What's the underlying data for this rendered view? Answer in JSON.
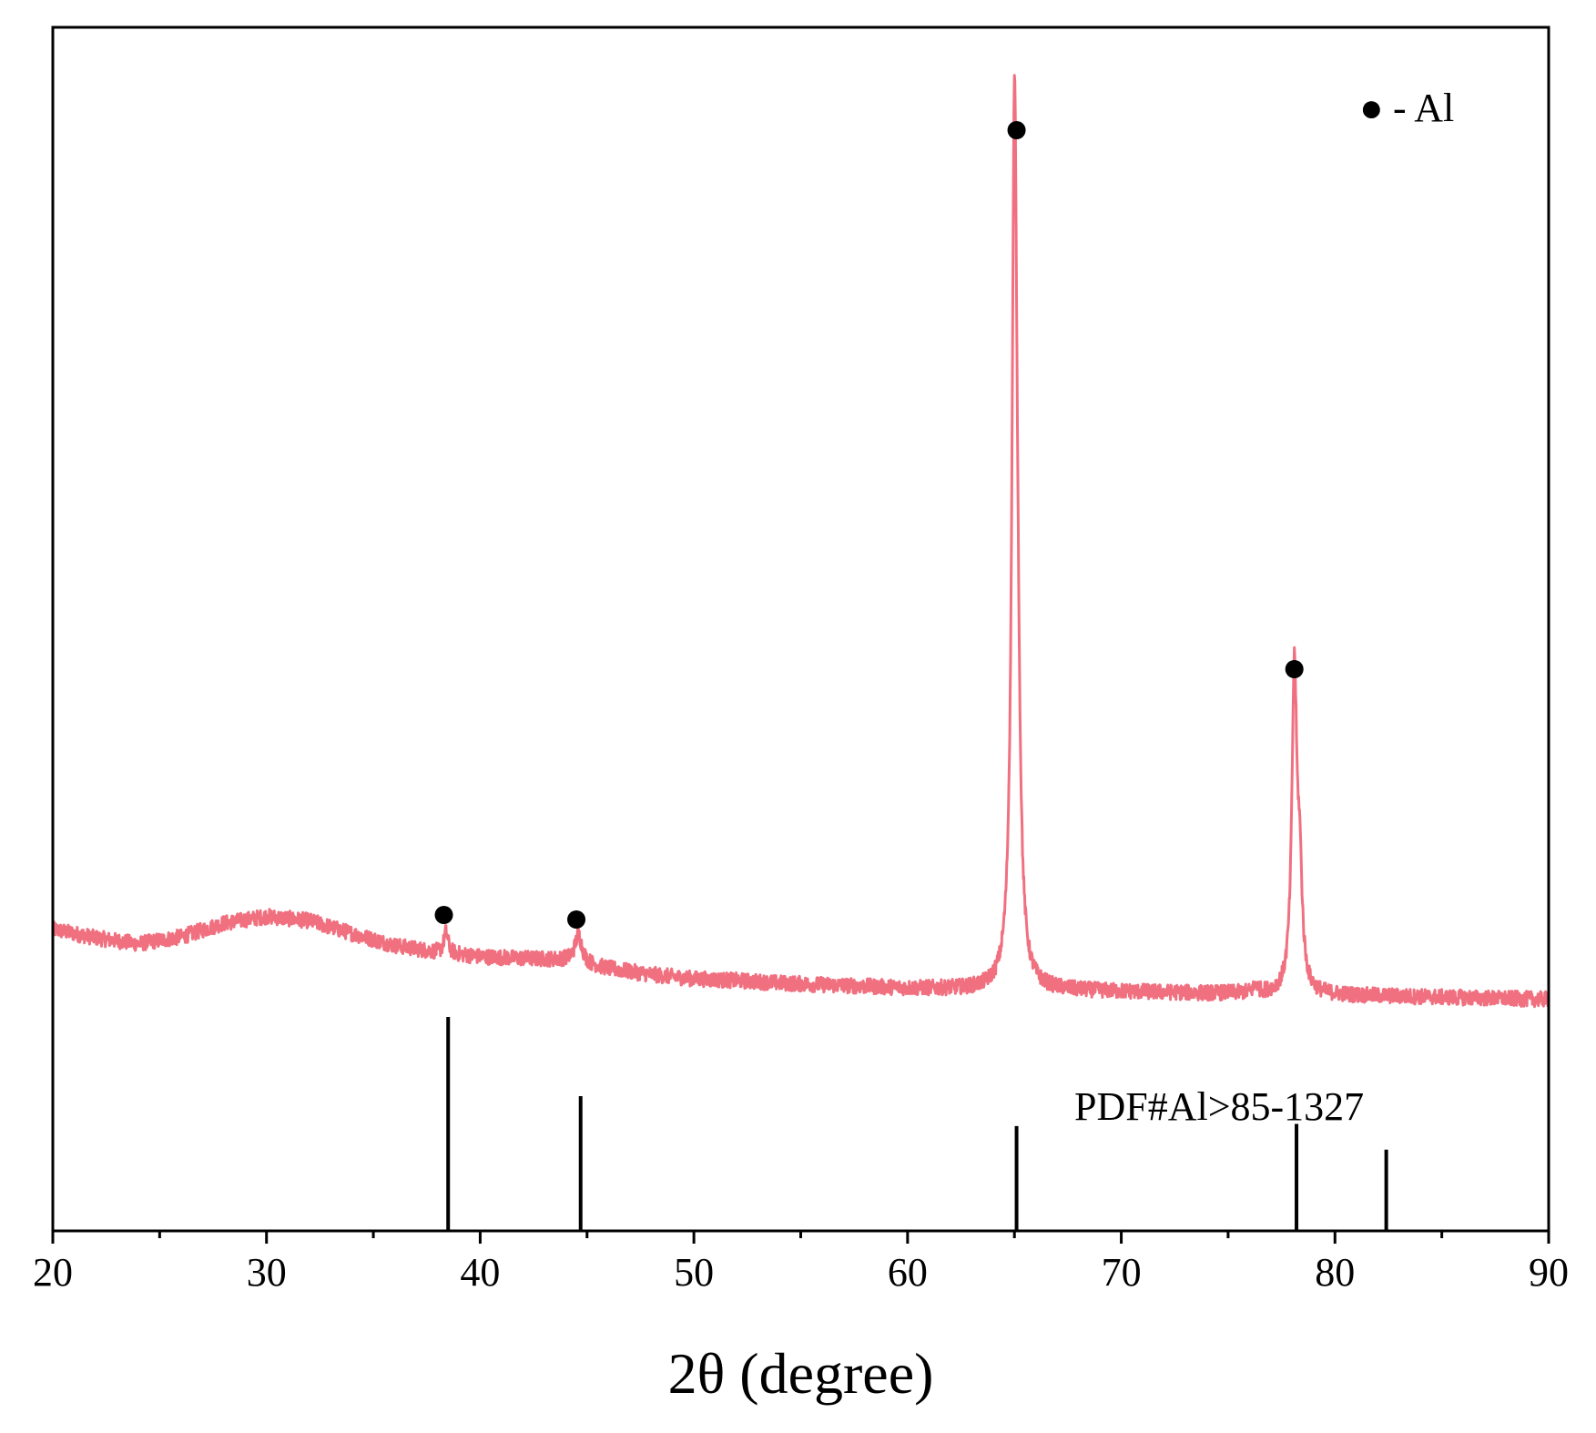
{
  "chart_data": {
    "type": "line",
    "xlabel": "2θ (degree)",
    "ylabel": "",
    "xlim": [
      20,
      90
    ],
    "x_ticks": [
      20,
      30,
      40,
      50,
      60,
      70,
      80,
      90
    ],
    "x_tick_labels": [
      "20",
      "30",
      "40",
      "50",
      "60",
      "70",
      "80",
      "90"
    ],
    "y_ticks_shown": false,
    "grid": false,
    "legend": {
      "marker": "●",
      "text": "- Al",
      "placement": "top-right"
    },
    "colors": {
      "pattern": "#f07080",
      "reference": "#000000",
      "marker": "#000000"
    },
    "series": [
      {
        "relative_intensity_scale": [
          0,
          100
        ],
        "background": [
          [
            20,
            9.5
          ],
          [
            22,
            8.5
          ],
          [
            24,
            7.8
          ],
          [
            26,
            8.6
          ],
          [
            28,
            10.2
          ],
          [
            30,
            11.0
          ],
          [
            32,
            10.5
          ],
          [
            34,
            9.0
          ],
          [
            36,
            7.6
          ],
          [
            38,
            6.8
          ],
          [
            40,
            6.3
          ],
          [
            42,
            6.1
          ],
          [
            44,
            5.9
          ],
          [
            46,
            4.9
          ],
          [
            48,
            4.2
          ],
          [
            50,
            3.7
          ],
          [
            52,
            3.5
          ],
          [
            54,
            3.2
          ],
          [
            56,
            3.0
          ],
          [
            58,
            2.8
          ],
          [
            60,
            2.6
          ],
          [
            62,
            2.5
          ],
          [
            64,
            2.4
          ],
          [
            66,
            2.4
          ],
          [
            68,
            2.3
          ],
          [
            70,
            2.2
          ],
          [
            72,
            2.1
          ],
          [
            74,
            2.0
          ],
          [
            76,
            2.0
          ],
          [
            78,
            1.9
          ],
          [
            80,
            1.8
          ],
          [
            82,
            1.7
          ],
          [
            84,
            1.6
          ],
          [
            86,
            1.5
          ],
          [
            88,
            1.4
          ],
          [
            90,
            1.3
          ]
        ],
        "peaks": [
          {
            "x": 38.4,
            "height": 2.5,
            "width": 0.12
          },
          {
            "x": 44.6,
            "height": 3.3,
            "width": 0.2
          },
          {
            "x": 65.0,
            "height": 98.0,
            "width": 0.14
          },
          {
            "x": 65.15,
            "height": 18.0,
            "width": 0.14
          },
          {
            "x": 78.1,
            "height": 37.0,
            "width": 0.14
          },
          {
            "x": 78.35,
            "height": 12.0,
            "width": 0.14
          },
          {
            "x": 76.3,
            "height": 1.0,
            "width": 0.1
          }
        ],
        "noise_amplitude": 0.9
      }
    ],
    "peak_markers": [
      {
        "x": 38.3,
        "label": "●"
      },
      {
        "x": 44.5,
        "label": "●"
      },
      {
        "x": 65.1,
        "label": "●"
      },
      {
        "x": 78.1,
        "label": "●"
      }
    ],
    "reference_pattern": {
      "label": "PDF#Al>85-1327",
      "lines": [
        {
          "x": 38.5,
          "intensity": 100
        },
        {
          "x": 44.7,
          "intensity": 63
        },
        {
          "x": 65.1,
          "intensity": 49
        },
        {
          "x": 78.2,
          "intensity": 50
        },
        {
          "x": 82.4,
          "intensity": 38
        }
      ]
    }
  }
}
